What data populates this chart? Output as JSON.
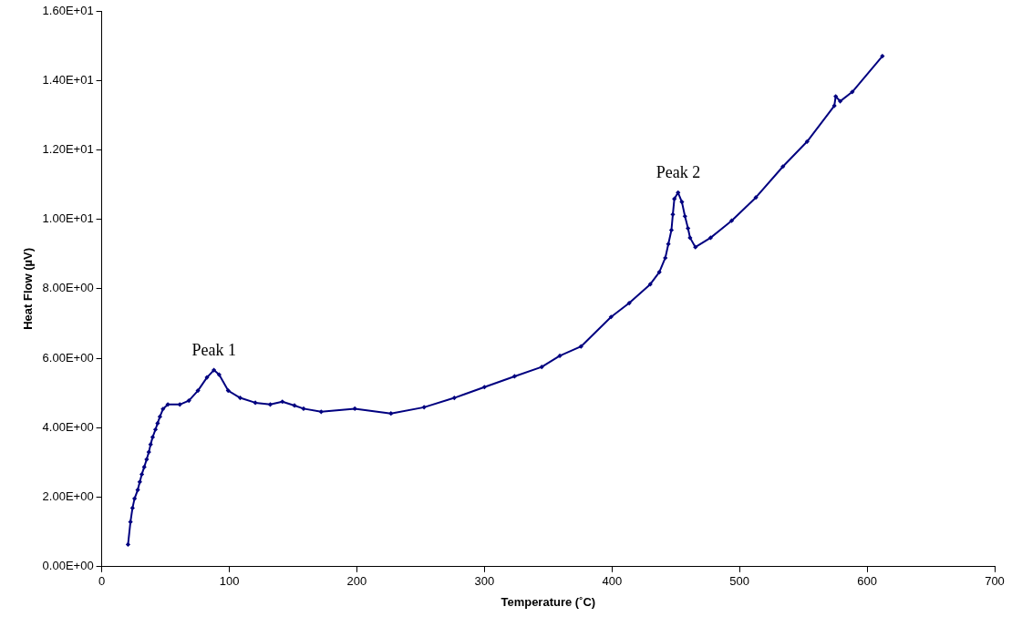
{
  "chart_data": {
    "type": "line",
    "xlabel": "Temperature (˚C)",
    "ylabel": "Heat Flow (µV)",
    "marker": "diamond",
    "line_style": "solid",
    "grid": false,
    "legend": false,
    "xlim": [
      0,
      700
    ],
    "xticks": [
      0,
      100,
      200,
      300,
      400,
      500,
      600,
      700
    ],
    "ylim": [
      0,
      16
    ],
    "yticks": [
      {
        "value": 0,
        "label": "0.00E+00"
      },
      {
        "value": 2,
        "label": "2.00E+00"
      },
      {
        "value": 4,
        "label": "4.00E+00"
      },
      {
        "value": 6,
        "label": "6.00E+00"
      },
      {
        "value": 8,
        "label": "8.00E+00"
      },
      {
        "value": 10,
        "label": "1.00E+01"
      },
      {
        "value": 12,
        "label": "1.20E+01"
      },
      {
        "value": 14,
        "label": "1.40E+01"
      },
      {
        "value": 16,
        "label": "1.60E+01"
      }
    ],
    "annotations": [
      {
        "text": "Peak 1",
        "x": 88,
        "y": 5.66
      },
      {
        "text": "Peak 2",
        "x": 452,
        "y": 10.77
      }
    ],
    "series": [
      {
        "color": "#000080",
        "x": [
          20.6,
          22.5,
          24.1,
          25.7,
          28.2,
          29.8,
          31.4,
          33.3,
          35.2,
          36.9,
          38.3,
          39.9,
          42.1,
          43.8,
          45.6,
          48,
          51.8,
          61.2,
          68.3,
          75.4,
          82.5,
          87.9,
          92,
          99.1,
          108.5,
          120.4,
          132.1,
          141.6,
          151.1,
          158.2,
          172,
          198.4,
          226.7,
          252.7,
          276.4,
          300,
          323.6,
          344.9,
          359.1,
          375.7,
          399.3,
          413.5,
          430,
          437.1,
          441.8,
          444.2,
          446.6,
          447.7,
          448.9,
          451.8,
          454.8,
          457.2,
          459.6,
          461.2,
          465.4,
          477.3,
          493.8,
          512.8,
          534,
          553,
          574.3,
          575.4,
          578.9,
          588.4,
          612
        ],
        "values": [
          0.64,
          1.29,
          1.69,
          1.96,
          2.21,
          2.44,
          2.66,
          2.87,
          3.09,
          3.3,
          3.52,
          3.73,
          3.95,
          4.13,
          4.32,
          4.54,
          4.67,
          4.67,
          4.78,
          5.07,
          5.45,
          5.66,
          5.53,
          5.07,
          4.86,
          4.72,
          4.67,
          4.75,
          4.64,
          4.55,
          4.46,
          4.55,
          4.41,
          4.59,
          4.86,
          5.17,
          5.48,
          5.75,
          6.07,
          6.34,
          7.19,
          7.59,
          8.13,
          8.48,
          8.89,
          9.29,
          9.69,
          10.14,
          10.59,
          10.77,
          10.5,
          10.09,
          9.74,
          9.47,
          9.2,
          9.47,
          9.96,
          10.63,
          11.52,
          12.24,
          13.27,
          13.54,
          13.4,
          13.67,
          14.7
        ]
      }
    ]
  }
}
